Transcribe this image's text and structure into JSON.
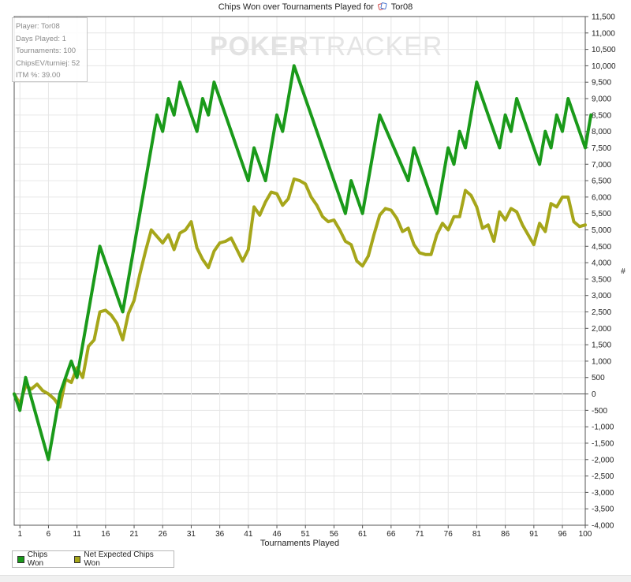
{
  "title": {
    "text_before": "Chips Won over Tournaments Played for",
    "player_name": "Tor08",
    "player_icon": "poker-cards-icon"
  },
  "stats_box": {
    "lines": [
      "Player: Tor08",
      "Days Played: 1",
      "Tournaments: 100",
      "ChipsEV/turniej: 52",
      "ITM %: 39.00"
    ]
  },
  "watermark": {
    "part1": "POKER",
    "part2": "TRACKER"
  },
  "legend": {
    "items": [
      {
        "label": "Chips Won",
        "color": "#1a9a1a"
      },
      {
        "label": "Net Expected Chips Won",
        "color": "#a6a61a"
      }
    ]
  },
  "chart_data": {
    "type": "line",
    "xlabel": "Tournaments Played",
    "ylabel": "#",
    "xlim": [
      0,
      100
    ],
    "ylim": [
      -4000,
      11500
    ],
    "x_ticks": [
      1,
      6,
      11,
      16,
      21,
      26,
      31,
      36,
      41,
      46,
      51,
      56,
      61,
      66,
      71,
      76,
      81,
      86,
      91,
      96,
      100
    ],
    "y_ticks": [
      -4000,
      -3500,
      -3000,
      -2500,
      -2000,
      -1500,
      -1000,
      -500,
      0,
      500,
      1000,
      1500,
      2000,
      2500,
      3000,
      3500,
      4000,
      4500,
      5000,
      5500,
      6000,
      6500,
      7000,
      7500,
      8000,
      8500,
      9000,
      9500,
      10000,
      10500,
      11000,
      11500
    ],
    "y_tick_labels": [
      "-4,000",
      "-3,500",
      "-3,000",
      "-2,500",
      "-2,000",
      "-1,500",
      "-1,000",
      "-500",
      "0",
      "500",
      "1,000",
      "1,500",
      "2,000",
      "2,500",
      "3,000",
      "3,500",
      "4,000",
      "4,500",
      "5,000",
      "5,500",
      "6,000",
      "6,500",
      "7,000",
      "7,500",
      "8,000",
      "8,500",
      "9,000",
      "9,500",
      "10,000",
      "10,500",
      "11,000",
      "11,500"
    ],
    "grid": true,
    "legend_position": "bottom-left",
    "series": [
      {
        "name": "Chips Won",
        "color": "#1a9a1a",
        "points": [
          [
            0,
            0
          ],
          [
            1,
            -500
          ],
          [
            2,
            500
          ],
          [
            6,
            -2000
          ],
          [
            8,
            0
          ],
          [
            10,
            1000
          ],
          [
            11,
            500
          ],
          [
            15,
            4500
          ],
          [
            19,
            2500
          ],
          [
            25,
            8500
          ],
          [
            26,
            8000
          ],
          [
            27,
            9000
          ],
          [
            28,
            8500
          ],
          [
            29,
            9500
          ],
          [
            32,
            8000
          ],
          [
            33,
            9000
          ],
          [
            34,
            8500
          ],
          [
            35,
            9500
          ],
          [
            41,
            6500
          ],
          [
            42,
            7500
          ],
          [
            44,
            6500
          ],
          [
            46,
            8500
          ],
          [
            47,
            8000
          ],
          [
            49,
            10000
          ],
          [
            58,
            5500
          ],
          [
            59,
            6500
          ],
          [
            61,
            5500
          ],
          [
            64,
            8500
          ],
          [
            69,
            6500
          ],
          [
            70,
            7500
          ],
          [
            74,
            5500
          ],
          [
            76,
            7500
          ],
          [
            77,
            7000
          ],
          [
            78,
            8000
          ],
          [
            79,
            7500
          ],
          [
            81,
            9500
          ],
          [
            85,
            7500
          ],
          [
            86,
            8500
          ],
          [
            87,
            8000
          ],
          [
            88,
            9000
          ],
          [
            92,
            7000
          ],
          [
            93,
            8000
          ],
          [
            94,
            7500
          ],
          [
            95,
            8500
          ],
          [
            96,
            8000
          ],
          [
            97,
            9000
          ],
          [
            100,
            7500
          ],
          [
            101,
            8500
          ]
        ]
      },
      {
        "name": "Net Expected Chips Won",
        "color": "#a6a61a",
        "points": [
          [
            0,
            0
          ],
          [
            1,
            -300
          ],
          [
            2,
            250
          ],
          [
            3,
            150
          ],
          [
            4,
            300
          ],
          [
            5,
            100
          ],
          [
            6,
            0
          ],
          [
            7,
            -150
          ],
          [
            8,
            -400
          ],
          [
            9,
            450
          ],
          [
            10,
            350
          ],
          [
            11,
            800
          ],
          [
            12,
            500
          ],
          [
            13,
            1450
          ],
          [
            14,
            1650
          ],
          [
            15,
            2500
          ],
          [
            16,
            2550
          ],
          [
            17,
            2400
          ],
          [
            18,
            2150
          ],
          [
            19,
            1650
          ],
          [
            20,
            2450
          ],
          [
            21,
            2850
          ],
          [
            22,
            3650
          ],
          [
            23,
            4350
          ],
          [
            24,
            5000
          ],
          [
            25,
            4800
          ],
          [
            26,
            4600
          ],
          [
            27,
            4850
          ],
          [
            28,
            4400
          ],
          [
            29,
            4900
          ],
          [
            30,
            5000
          ],
          [
            31,
            5250
          ],
          [
            32,
            4450
          ],
          [
            33,
            4100
          ],
          [
            34,
            3850
          ],
          [
            35,
            4350
          ],
          [
            36,
            4600
          ],
          [
            37,
            4650
          ],
          [
            38,
            4750
          ],
          [
            39,
            4400
          ],
          [
            40,
            4050
          ],
          [
            41,
            4400
          ],
          [
            42,
            5700
          ],
          [
            43,
            5450
          ],
          [
            44,
            5850
          ],
          [
            45,
            6150
          ],
          [
            46,
            6100
          ],
          [
            47,
            5750
          ],
          [
            48,
            5950
          ],
          [
            49,
            6550
          ],
          [
            50,
            6500
          ],
          [
            51,
            6400
          ],
          [
            52,
            6000
          ],
          [
            53,
            5750
          ],
          [
            54,
            5400
          ],
          [
            55,
            5250
          ],
          [
            56,
            5300
          ],
          [
            57,
            5000
          ],
          [
            58,
            4650
          ],
          [
            59,
            4550
          ],
          [
            60,
            4050
          ],
          [
            61,
            3900
          ],
          [
            62,
            4200
          ],
          [
            63,
            4850
          ],
          [
            64,
            5450
          ],
          [
            65,
            5650
          ],
          [
            66,
            5600
          ],
          [
            67,
            5350
          ],
          [
            68,
            4950
          ],
          [
            69,
            5050
          ],
          [
            70,
            4550
          ],
          [
            71,
            4300
          ],
          [
            72,
            4250
          ],
          [
            73,
            4250
          ],
          [
            74,
            4850
          ],
          [
            75,
            5200
          ],
          [
            76,
            5000
          ],
          [
            77,
            5400
          ],
          [
            78,
            5400
          ],
          [
            79,
            6200
          ],
          [
            80,
            6050
          ],
          [
            81,
            5700
          ],
          [
            82,
            5050
          ],
          [
            83,
            5150
          ],
          [
            84,
            4650
          ],
          [
            85,
            5550
          ],
          [
            86,
            5300
          ],
          [
            87,
            5650
          ],
          [
            88,
            5550
          ],
          [
            89,
            5150
          ],
          [
            90,
            4850
          ],
          [
            91,
            4550
          ],
          [
            92,
            5200
          ],
          [
            93,
            4950
          ],
          [
            94,
            5800
          ],
          [
            95,
            5700
          ],
          [
            96,
            6000
          ],
          [
            97,
            6000
          ],
          [
            98,
            5250
          ],
          [
            99,
            5100
          ],
          [
            100,
            5150
          ]
        ]
      }
    ]
  }
}
